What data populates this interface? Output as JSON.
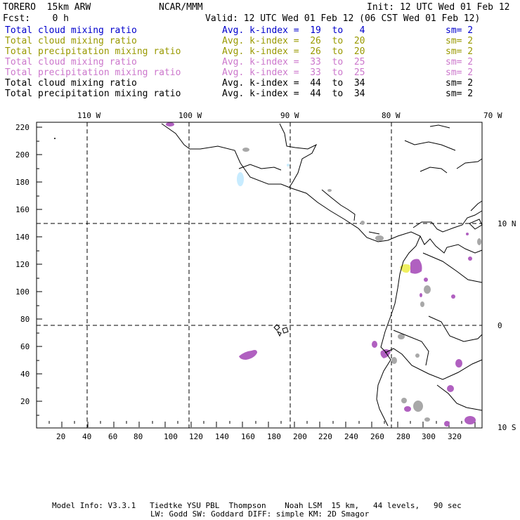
{
  "header": {
    "model": "TORERO  15km ARW",
    "org": "NCAR/MMM",
    "init": "Init: 12 UTC Wed 01 Feb 12",
    "fcst": "Fcst:    0 h",
    "valid": "Valid: 12 UTC Wed 01 Feb 12 (06 CST Wed 01 Feb 12)"
  },
  "fields": [
    {
      "name": "Total cloud mixing ratio",
      "kindex": "Avg. k-index =  19  to   4",
      "sm": "sm= 2",
      "color": "#0000cc"
    },
    {
      "name": "Total cloud mixing ratio",
      "kindex": "Avg. k-index =  26  to  20",
      "sm": "sm= 2",
      "color": "#999900"
    },
    {
      "name": "Total precipitation mixing ratio",
      "kindex": "Avg. k-index =  26  to  20",
      "sm": "sm= 2",
      "color": "#999900"
    },
    {
      "name": "Total cloud mixing ratio",
      "kindex": "Avg. k-index =  33  to  25",
      "sm": "sm= 2",
      "color": "#cc77cc"
    },
    {
      "name": "Total precipitation mixing ratio",
      "kindex": "Avg. k-index =  33  to  25",
      "sm": "sm= 2",
      "color": "#cc77cc"
    },
    {
      "name": "Total cloud mixing ratio",
      "kindex": "Avg. k-index =  44  to  34",
      "sm": "sm= 2",
      "color": "#000000"
    },
    {
      "name": "Total precipitation mixing ratio",
      "kindex": "Avg. k-index =  44  to  34",
      "sm": "sm= 2",
      "color": "#000000"
    }
  ],
  "map": {
    "x_ticks": [
      "20",
      "40",
      "60",
      "80",
      "100",
      "120",
      "140",
      "160",
      "180",
      "200",
      "220",
      "240",
      "260",
      "280",
      "300",
      "320"
    ],
    "y_ticks": [
      "20",
      "40",
      "60",
      "80",
      "100",
      "120",
      "140",
      "160",
      "180",
      "200",
      "220"
    ],
    "lon_labels": [
      "110 W",
      "100 W",
      "90 W",
      "80 W",
      "70 W"
    ],
    "lat_labels": [
      "10 N",
      "0",
      "10 S"
    ],
    "colors": {
      "purple": "#b060c0",
      "gray": "#a8a8a8",
      "yellow": "#f0f060",
      "lightblue": "#c8ecff"
    }
  },
  "footer": {
    "line1": "Model Info: V3.3.1   Tiedtke YSU PBL  Thompson    Noah LSM  15 km,   44 levels,   90 sec",
    "line2": "LW: Godd SW: Goddard DIFF: simple KM: 2D Smagor"
  }
}
